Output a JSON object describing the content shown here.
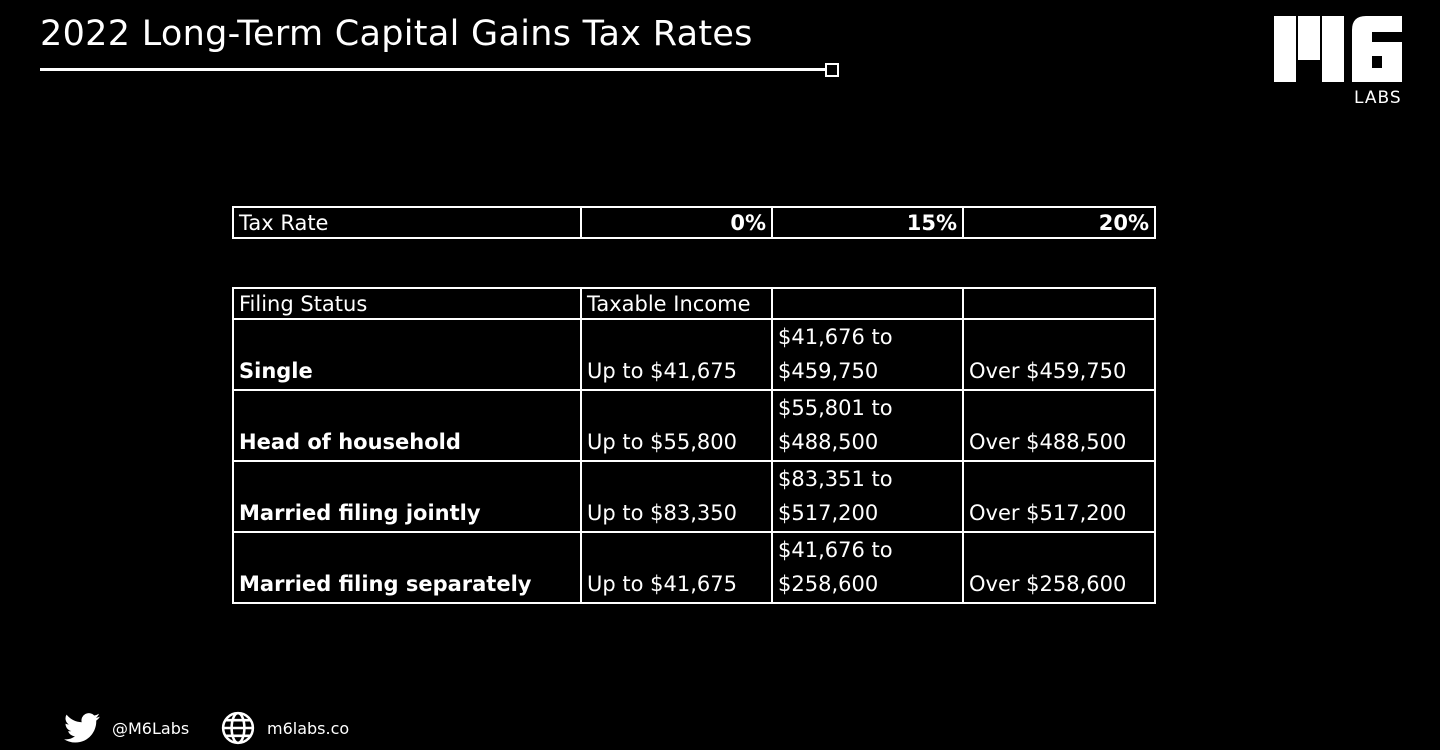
{
  "header": {
    "title": "2022 Long-Term Capital Gains Tax Rates",
    "logo_text": "M6",
    "logo_subtext": "LABS"
  },
  "rates_table": {
    "label": "Tax Rate",
    "rates": [
      "0%",
      "15%",
      "20%"
    ]
  },
  "status_table": {
    "headers": [
      "Filing Status",
      "Taxable Income",
      "",
      ""
    ],
    "rows": [
      {
        "status": "Single",
        "zero": "Up to $41,675",
        "fifteen_from": "$41,676 to",
        "fifteen_to": "$459,750",
        "twenty": "Over $459,750"
      },
      {
        "status": "Head of household",
        "zero": "Up to $55,800",
        "fifteen_from": "$55,801 to",
        "fifteen_to": "$488,500",
        "twenty": "Over $488,500"
      },
      {
        "status": "Married filing jointly",
        "zero": "Up to $83,350",
        "fifteen_from": "$83,351 to",
        "fifteen_to": "$517,200",
        "twenty": "Over $517,200"
      },
      {
        "status": "Married filing separately",
        "zero": "Up to $41,675",
        "fifteen_from": "$41,676 to",
        "fifteen_to": "$258,600",
        "twenty": "Over $258,600"
      }
    ]
  },
  "footer": {
    "twitter_handle": "@M6Labs",
    "twitter_icon": "twitter-bird-icon",
    "website": "m6labs.co",
    "website_icon": "globe-icon"
  },
  "colors": {
    "background": "#000000",
    "foreground": "#ffffff"
  }
}
